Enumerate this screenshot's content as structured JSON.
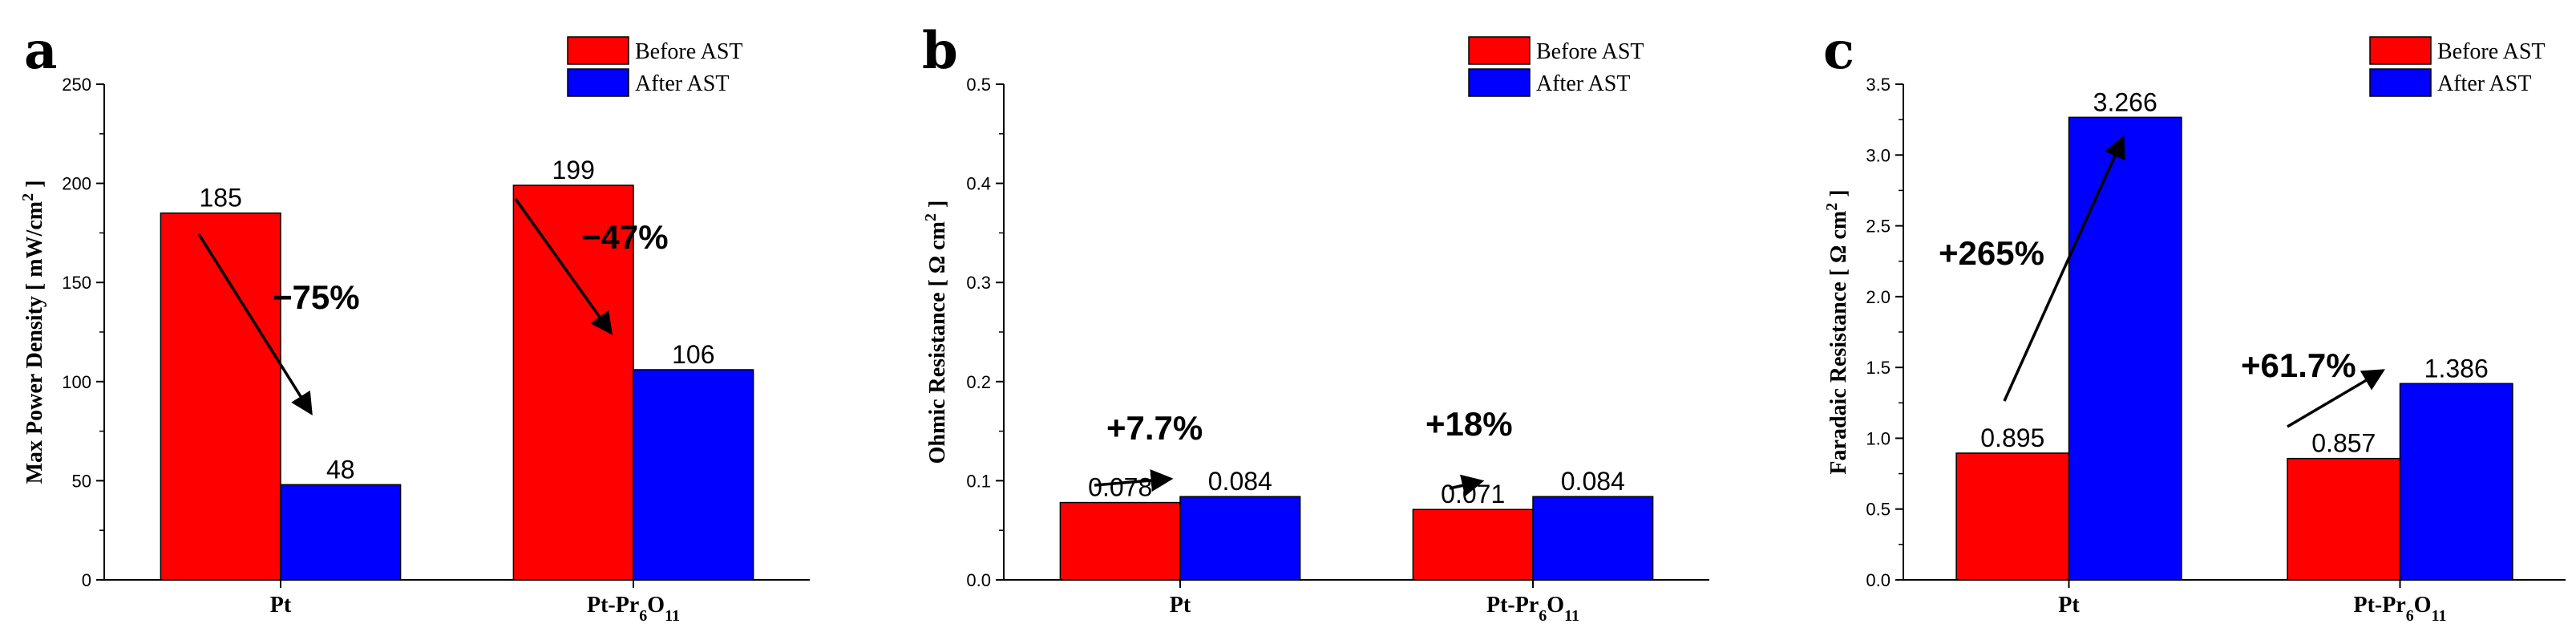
{
  "colors": {
    "before": "#ff0000",
    "after": "#0000ff"
  },
  "chart_data": [
    {
      "type": "bar",
      "panel": "a",
      "categories": [
        "Pt",
        "Pt-Pr6O11"
      ],
      "category_labels": [
        {
          "base": "Pt",
          "parts": []
        },
        {
          "base": "Pt-Pr",
          "parts": [
            {
              "t": "6",
              "sub": true
            },
            {
              "t": "O",
              "sub": false
            },
            {
              "t": "11",
              "sub": true
            }
          ]
        }
      ],
      "series": [
        {
          "name": "Before AST",
          "values": [
            185,
            199
          ],
          "labels": [
            "185",
            "199"
          ]
        },
        {
          "name": "After AST",
          "values": [
            48,
            106
          ],
          "labels": [
            "48",
            "106"
          ]
        }
      ],
      "ylabel": "Max Power Density [ mW/cm² ]",
      "ylabel_parts": [
        {
          "t": "Max Power Density [ mW/cm",
          "sup": false
        },
        {
          "t": "2",
          "sup": true
        },
        {
          "t": " ]",
          "sup": false
        }
      ],
      "ylim": [
        0,
        250
      ],
      "yticks": [
        0,
        50,
        100,
        150,
        200,
        250
      ],
      "ytick_labels": [
        "0",
        "50",
        "100",
        "150",
        "200",
        "250"
      ],
      "legend": "top-right",
      "annotations": [
        {
          "text": "−75%",
          "category": 0,
          "from": [
            0,
            185
          ],
          "to": [
            1,
            48
          ]
        },
        {
          "text": "−47%",
          "category": 1,
          "from": [
            0,
            199
          ],
          "to": [
            1,
            106
          ]
        }
      ]
    },
    {
      "type": "bar",
      "panel": "b",
      "categories": [
        "Pt",
        "Pt-Pr6O11"
      ],
      "category_labels": [
        {
          "base": "Pt",
          "parts": []
        },
        {
          "base": "Pt-Pr",
          "parts": [
            {
              "t": "6",
              "sub": true
            },
            {
              "t": "O",
              "sub": false
            },
            {
              "t": "11",
              "sub": true
            }
          ]
        }
      ],
      "series": [
        {
          "name": "Before AST",
          "values": [
            0.078,
            0.071
          ],
          "labels": [
            "0.078",
            "0.071"
          ]
        },
        {
          "name": "After AST",
          "values": [
            0.084,
            0.084
          ],
          "labels": [
            "0.084",
            "0.084"
          ]
        }
      ],
      "ylabel": "Ohmic Resistance [ Ω cm² ]",
      "ylabel_parts": [
        {
          "t": "Ohmic Resistance [ Ω cm",
          "sup": false
        },
        {
          "t": "2",
          "sup": true
        },
        {
          "t": " ]",
          "sup": false
        }
      ],
      "ylim": [
        0,
        0.5
      ],
      "yticks": [
        0,
        0.1,
        0.2,
        0.3,
        0.4,
        0.5
      ],
      "ytick_labels": [
        "0.0",
        "0.1",
        "0.2",
        "0.3",
        "0.4",
        "0.5"
      ],
      "legend": "top-right",
      "annotations": [
        {
          "text": "+7.7%",
          "category": 0
        },
        {
          "text": "+18%",
          "category": 1
        }
      ]
    },
    {
      "type": "bar",
      "panel": "c",
      "categories": [
        "Pt",
        "Pt-Pr6O11"
      ],
      "category_labels": [
        {
          "base": "Pt",
          "parts": []
        },
        {
          "base": "Pt-Pr",
          "parts": [
            {
              "t": "6",
              "sub": true
            },
            {
              "t": "O",
              "sub": false
            },
            {
              "t": "11",
              "sub": true
            }
          ]
        }
      ],
      "series": [
        {
          "name": "Before AST",
          "values": [
            0.895,
            0.857
          ],
          "labels": [
            "0.895",
            "0.857"
          ]
        },
        {
          "name": "After AST",
          "values": [
            3.266,
            1.386
          ],
          "labels": [
            "3.266",
            "1.386"
          ]
        }
      ],
      "ylabel": "Faradaic Resistance [ Ω cm² ]",
      "ylabel_parts": [
        {
          "t": "Faradaic Resistance [ Ω cm",
          "sup": false
        },
        {
          "t": "2",
          "sup": true
        },
        {
          "t": " ]",
          "sup": false
        }
      ],
      "ylim": [
        0,
        3.5
      ],
      "yticks": [
        0,
        0.5,
        1,
        1.5,
        2,
        2.5,
        3,
        3.5
      ],
      "ytick_labels": [
        "0.0",
        "0.5",
        "1.0",
        "1.5",
        "2.0",
        "2.5",
        "3.0",
        "3.5"
      ],
      "legend": "top-right",
      "annotations": [
        {
          "text": "+265%",
          "category": 0
        },
        {
          "text": "+61.7%",
          "category": 1
        }
      ]
    }
  ]
}
